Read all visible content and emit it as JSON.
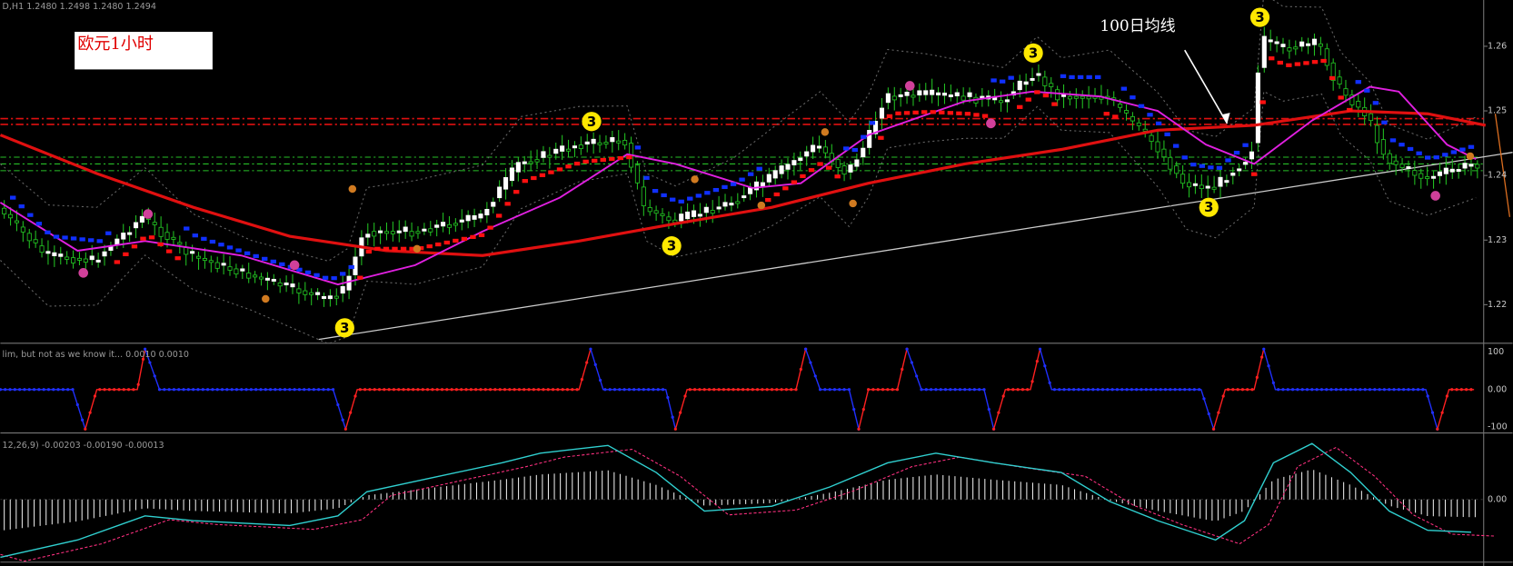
{
  "header": {
    "symbol_info": "D,H1  1.2480 1.2498 1.2480 1.2494"
  },
  "annotations": {
    "label_box": "欧元1小时",
    "ma_label": "100日均线"
  },
  "markers": [
    "3",
    "3",
    "3",
    "3",
    "3",
    "3"
  ],
  "price_axis": {
    "labels": [
      "1.26",
      "1.25",
      "1.24",
      "1.23",
      "1.22"
    ]
  },
  "indicator_panel": {
    "title": "lim, but not as we know it...  0.0010  0.0010",
    "axis": [
      "100",
      "0.00",
      "-100"
    ]
  },
  "macd_panel": {
    "title": "12,26,9) -0.00203 -0.00190 -0.00013",
    "axis": [
      "0.00"
    ]
  }
}
